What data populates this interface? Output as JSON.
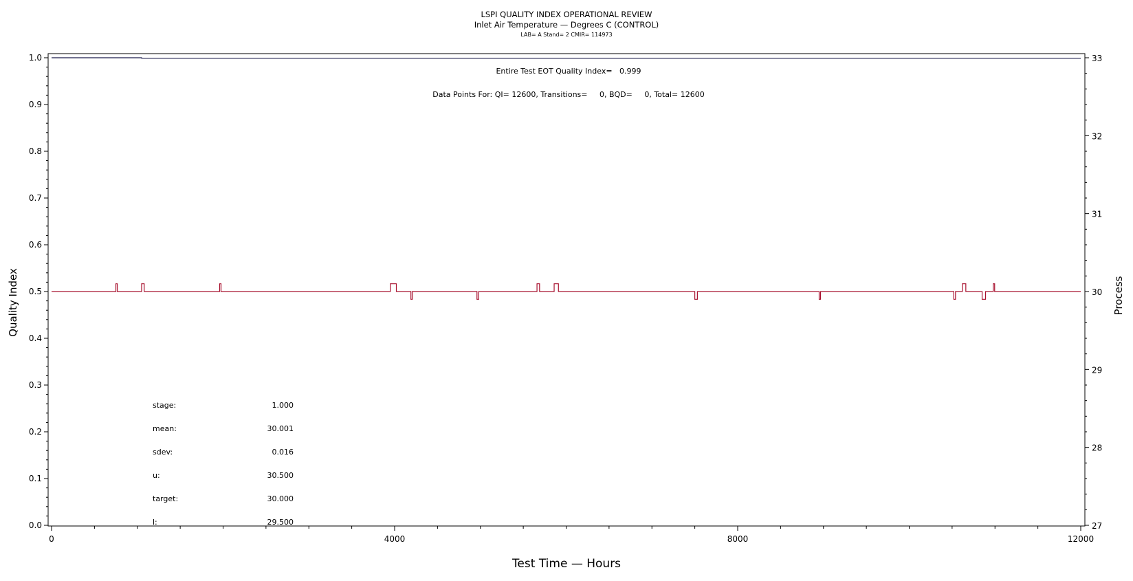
{
  "chart_data": {
    "type": "line",
    "title": "LSPI QUALITY INDEX OPERATIONAL REVIEW",
    "subtitle": "Inlet Air Temperature — Degrees C (CONTROL)",
    "subtitle2": "LAB= A Stand= 2 CMIR= 114973",
    "xlabel": "Test Time — Hours",
    "ylabel": "Quality Index",
    "y2label": "Process",
    "xlim": [
      0,
      12000
    ],
    "ylim": [
      0,
      1.0
    ],
    "y2lim": [
      27,
      33
    ],
    "xticks": [
      0,
      4000,
      8000,
      12000
    ],
    "xticklabels": [
      "0",
      "4000",
      "8000",
      "12000"
    ],
    "yticks": [
      0.0,
      0.1,
      0.2,
      0.3,
      0.4,
      0.5,
      0.6,
      0.7,
      0.8,
      0.9,
      1.0
    ],
    "yticklabels": [
      "0.0",
      "0.1",
      "0.2",
      "0.3",
      "0.4",
      "0.5",
      "0.6",
      "0.7",
      "0.8",
      "0.9",
      "1.0"
    ],
    "y2ticks": [
      27,
      28,
      29,
      30,
      31,
      32,
      33
    ],
    "y2ticklabels": [
      "27",
      "28",
      "29",
      "30",
      "31",
      "32",
      "33"
    ],
    "annotation_qi": "Entire Test EOT Quality Index=   0.999",
    "annotation_points": "Data Points For: QI= 12600, Transitions=     0, BQD=     0, Total= 12600",
    "stats": [
      {
        "label": "stage:",
        "value": "1.000"
      },
      {
        "label": "mean:",
        "value": "30.001"
      },
      {
        "label": "sdev:",
        "value": "0.016"
      },
      {
        "label": "u:",
        "value": "30.500"
      },
      {
        "label": "target:",
        "value": "30.000"
      },
      {
        "label": "l:",
        "value": "29.500"
      }
    ],
    "series": [
      {
        "axis": "left",
        "color": "#1a1a4a",
        "x": [
          0,
          1050,
          1050,
          12000
        ],
        "y": [
          1.0,
          1.0,
          0.999,
          0.999
        ]
      },
      {
        "axis": "right",
        "color": "#a8102e",
        "baseline": 30.0,
        "excursions": [
          {
            "x0": 750,
            "x1": 760,
            "v": 30.1
          },
          {
            "x0": 1050,
            "x1": 1080,
            "v": 30.1
          },
          {
            "x0": 1960,
            "x1": 1970,
            "v": 30.1
          },
          {
            "x0": 3950,
            "x1": 4020,
            "v": 30.1
          },
          {
            "x0": 4190,
            "x1": 4200,
            "v": 29.9
          },
          {
            "x0": 4960,
            "x1": 4980,
            "v": 29.9
          },
          {
            "x0": 5660,
            "x1": 5690,
            "v": 30.1
          },
          {
            "x0": 5860,
            "x1": 5910,
            "v": 30.1
          },
          {
            "x0": 7500,
            "x1": 7530,
            "v": 29.9
          },
          {
            "x0": 8950,
            "x1": 8960,
            "v": 29.9
          },
          {
            "x0": 10520,
            "x1": 10540,
            "v": 29.9
          },
          {
            "x0": 10620,
            "x1": 10660,
            "v": 30.1
          },
          {
            "x0": 10850,
            "x1": 10890,
            "v": 29.9
          },
          {
            "x0": 10980,
            "x1": 10990,
            "v": 30.1
          }
        ]
      }
    ],
    "grid": false
  }
}
